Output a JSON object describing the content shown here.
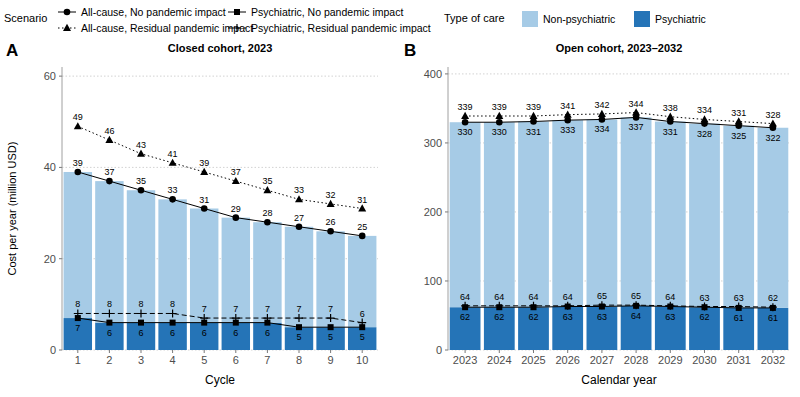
{
  "chart_data": [
    {
      "type": "bar",
      "panel_label": "A",
      "title": "Closed cohort, 2023",
      "x_label": "Cycle",
      "y_label": "Cost per year (million USD)",
      "legend": "top",
      "legend_titles": {
        "line": "Scenario",
        "bar": "Type of care"
      },
      "stacked": true,
      "grid": true,
      "ylim": [
        0,
        62
      ],
      "yticks": [
        0,
        20,
        40,
        60
      ],
      "categories": [
        "1",
        "2",
        "3",
        "4",
        "5",
        "6",
        "7",
        "8",
        "9",
        "10"
      ],
      "series": [
        {
          "name": "Non-psychiatric",
          "type": "bar",
          "color": "#a6cbe6",
          "values": [
            32,
            31,
            29,
            27,
            25,
            23,
            22,
            22,
            21,
            20
          ]
        },
        {
          "name": "Psychiatric",
          "type": "bar",
          "color": "#2574b7",
          "values": [
            7,
            6,
            6,
            6,
            6,
            6,
            6,
            5,
            5,
            5
          ]
        },
        {
          "name": "All-cause, No pandemic impact",
          "type": "line",
          "marker": "circle",
          "line_style": "solid",
          "color": "#000000",
          "data_labels": true,
          "values": [
            39,
            37,
            35,
            33,
            31,
            29,
            28,
            27,
            26,
            25
          ]
        },
        {
          "name": "All-cause, Residual pandemic impact",
          "type": "line",
          "marker": "triangle",
          "line_style": "dotted",
          "color": "#000000",
          "data_labels": true,
          "values": [
            49,
            46,
            43,
            41,
            39,
            37,
            35,
            33,
            32,
            31
          ]
        },
        {
          "name": "Psychiatric, No pandemic impact",
          "type": "line",
          "marker": "square",
          "line_style": "solid",
          "color": "#000000",
          "data_labels": true,
          "values": [
            7,
            6,
            6,
            6,
            6,
            6,
            6,
            5,
            5,
            5
          ]
        },
        {
          "name": "Psychiatric, Residual pandemic impact",
          "type": "line",
          "marker": "plus",
          "line_style": "dashed",
          "color": "#000000",
          "data_labels": true,
          "values": [
            8,
            8,
            8,
            8,
            7,
            7,
            7,
            7,
            7,
            6
          ]
        }
      ]
    },
    {
      "type": "bar",
      "panel_label": "B",
      "title": "Open cohort, 2023–2032",
      "x_label": "Calendar year",
      "legend": "none",
      "stacked": true,
      "grid": true,
      "ylim": [
        0,
        410
      ],
      "yticks": [
        0,
        100,
        200,
        300,
        400
      ],
      "categories": [
        "2023",
        "2024",
        "2025",
        "2026",
        "2027",
        "2028",
        "2029",
        "2030",
        "2031",
        "2032"
      ],
      "series": [
        {
          "name": "Non-psychiatric",
          "type": "bar",
          "color": "#a6cbe6",
          "values": [
            268,
            268,
            269,
            270,
            271,
            273,
            268,
            266,
            264,
            261
          ]
        },
        {
          "name": "Psychiatric",
          "type": "bar",
          "color": "#2574b7",
          "values": [
            62,
            62,
            62,
            63,
            63,
            64,
            63,
            62,
            61,
            61
          ]
        },
        {
          "name": "All-cause, No pandemic impact",
          "type": "line",
          "marker": "circle",
          "line_style": "solid",
          "color": "#000000",
          "data_labels": true,
          "values": [
            330,
            330,
            331,
            333,
            334,
            337,
            331,
            328,
            325,
            322
          ]
        },
        {
          "name": "All-cause, Residual pandemic impact",
          "type": "line",
          "marker": "triangle",
          "line_style": "dotted",
          "color": "#000000",
          "data_labels": true,
          "values": [
            339,
            339,
            339,
            341,
            342,
            344,
            338,
            334,
            331,
            328
          ]
        },
        {
          "name": "Psychiatric, No pandemic impact",
          "type": "line",
          "marker": "square",
          "line_style": "solid",
          "color": "#000000",
          "data_labels": true,
          "values": [
            62,
            62,
            62,
            63,
            63,
            64,
            63,
            62,
            61,
            61
          ]
        },
        {
          "name": "Psychiatric, Residual pandemic impact",
          "type": "line",
          "marker": "plus",
          "line_style": "dashed",
          "color": "#000000",
          "data_labels": true,
          "values": [
            64,
            64,
            64,
            64,
            65,
            65,
            64,
            63,
            63,
            62
          ]
        }
      ]
    }
  ]
}
